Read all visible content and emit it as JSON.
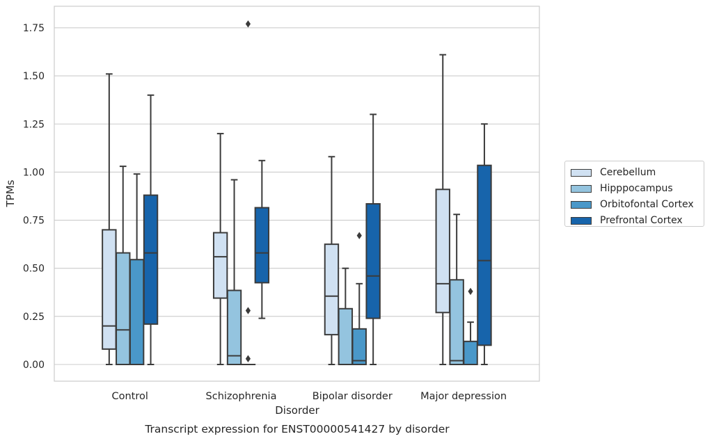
{
  "chart_data": {
    "type": "box",
    "title": "Transcript expression for ENST00000541427 by disorder",
    "xlabel": "Disorder",
    "ylabel": "TPMs",
    "ylim": [
      -0.09,
      1.86
    ],
    "yticks": [
      0.0,
      0.25,
      0.5,
      0.75,
      1.0,
      1.25,
      1.5,
      1.75
    ],
    "ytick_labels": [
      "0.00",
      "0.25",
      "0.50",
      "0.75",
      "1.00",
      "1.25",
      "1.50",
      "1.75"
    ],
    "grid": true,
    "legend_position": "right",
    "categories": [
      "Control",
      "Schizophrenia",
      "Bipolar disorder",
      "Major depression"
    ],
    "series": [
      {
        "name": "Cerebellum",
        "color": "#d0e1f2",
        "boxes": [
          {
            "whisker_low": 0.0,
            "q1": 0.08,
            "median": 0.2,
            "q3": 0.7,
            "whisker_high": 1.51,
            "outliers": []
          },
          {
            "whisker_low": 0.0,
            "q1": 0.345,
            "median": 0.56,
            "q3": 0.685,
            "whisker_high": 1.2,
            "outliers": []
          },
          {
            "whisker_low": 0.0,
            "q1": 0.155,
            "median": 0.355,
            "q3": 0.625,
            "whisker_high": 1.08,
            "outliers": []
          },
          {
            "whisker_low": 0.0,
            "q1": 0.27,
            "median": 0.42,
            "q3": 0.91,
            "whisker_high": 1.61,
            "outliers": []
          }
        ]
      },
      {
        "name": "Hipppocampus",
        "color": "#94c4df",
        "boxes": [
          {
            "whisker_low": 0.0,
            "q1": 0.0,
            "median": 0.18,
            "q3": 0.58,
            "whisker_high": 1.03,
            "outliers": []
          },
          {
            "whisker_low": 0.0,
            "q1": 0.0,
            "median": 0.045,
            "q3": 0.385,
            "whisker_high": 0.96,
            "outliers": []
          },
          {
            "whisker_low": 0.0,
            "q1": 0.0,
            "median": 0.0,
            "q3": 0.29,
            "whisker_high": 0.5,
            "outliers": []
          },
          {
            "whisker_low": 0.0,
            "q1": 0.0,
            "median": 0.02,
            "q3": 0.44,
            "whisker_high": 0.78,
            "outliers": []
          }
        ]
      },
      {
        "name": "Orbitofontal Cortex",
        "color": "#4a98c9",
        "boxes": [
          {
            "whisker_low": 0.0,
            "q1": 0.0,
            "median": 0.0,
            "q3": 0.545,
            "whisker_high": 0.99,
            "outliers": []
          },
          {
            "whisker_low": 0.0,
            "q1": 0.0,
            "median": 0.0,
            "q3": 0.0,
            "whisker_high": 0.0,
            "outliers": [
              1.77,
              0.28,
              0.03
            ]
          },
          {
            "whisker_low": 0.0,
            "q1": 0.0,
            "median": 0.02,
            "q3": 0.185,
            "whisker_high": 0.42,
            "outliers": [
              0.67
            ]
          },
          {
            "whisker_low": 0.0,
            "q1": 0.0,
            "median": 0.0,
            "q3": 0.12,
            "whisker_high": 0.22,
            "outliers": [
              0.38
            ]
          }
        ]
      },
      {
        "name": "Prefrontal Cortex",
        "color": "#1764ab",
        "boxes": [
          {
            "whisker_low": 0.0,
            "q1": 0.21,
            "median": 0.58,
            "q3": 0.88,
            "whisker_high": 1.4,
            "outliers": []
          },
          {
            "whisker_low": 0.24,
            "q1": 0.425,
            "median": 0.58,
            "q3": 0.815,
            "whisker_high": 1.06,
            "outliers": []
          },
          {
            "whisker_low": 0.0,
            "q1": 0.24,
            "median": 0.46,
            "q3": 0.835,
            "whisker_high": 1.3,
            "outliers": []
          },
          {
            "whisker_low": 0.0,
            "q1": 0.1,
            "median": 0.54,
            "q3": 1.035,
            "whisker_high": 1.25,
            "outliers": []
          }
        ]
      }
    ]
  }
}
